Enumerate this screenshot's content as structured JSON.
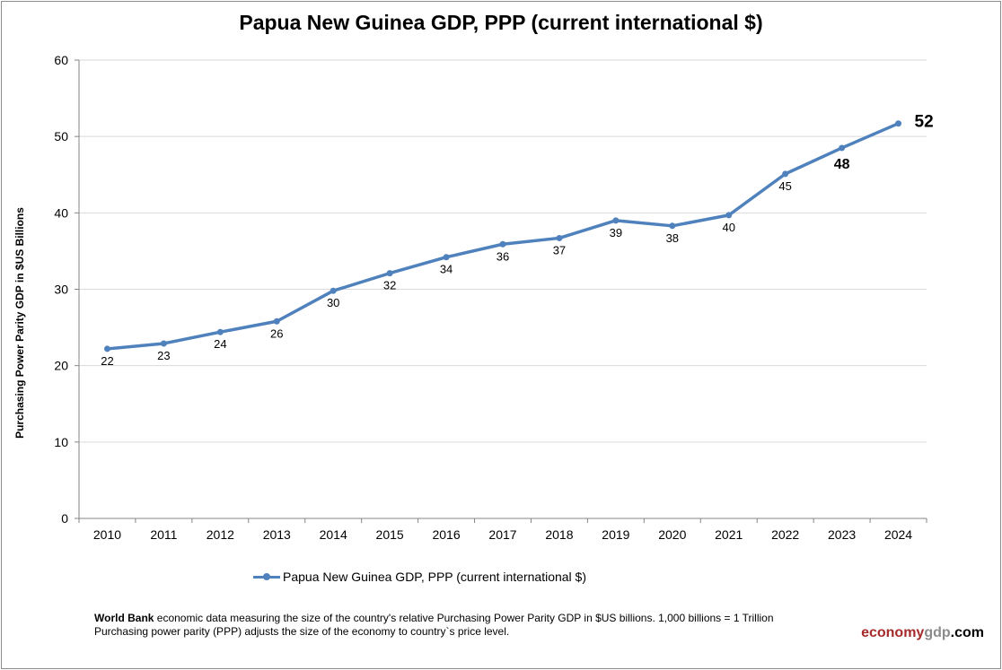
{
  "chart_data": {
    "type": "line",
    "title": "Papua New Guinea GDP, PPP (current international $)",
    "ylabel": "Purchasing Power Parity GDP in $US Billions",
    "xlabel": "",
    "categories": [
      "2010",
      "2011",
      "2012",
      "2013",
      "2014",
      "2015",
      "2016",
      "2017",
      "2018",
      "2019",
      "2020",
      "2021",
      "2022",
      "2023",
      "2024"
    ],
    "series": [
      {
        "name": "Papua New Guinea GDP, PPP (current international $)",
        "values": [
          22.2,
          22.9,
          24.4,
          25.8,
          29.8,
          32.1,
          34.2,
          35.9,
          36.7,
          39.0,
          38.3,
          39.7,
          45.1,
          48.5,
          51.7
        ],
        "labels": [
          "22",
          "23",
          "24",
          "26",
          "30",
          "32",
          "34",
          "36",
          "37",
          "39",
          "38",
          "40",
          "45",
          "48",
          "52"
        ],
        "color": "#4f81bd"
      }
    ],
    "ylim": [
      0,
      60
    ],
    "yticks": [
      "0",
      "10",
      "20",
      "30",
      "40",
      "50",
      "60"
    ],
    "grid": true,
    "legend": "bottom"
  },
  "footer": {
    "source_bold": "World Bank",
    "line1": " economic data  measuring the size of the country's relative  Purchasing Power Parity GDP in $US billions. 1,000 billions = 1 Trillion",
    "line2": "Purchasing power parity (PPP) adjusts the size of the economy to country`s price level."
  },
  "brand": {
    "part1": "economy",
    "part2": "gdp",
    "part3": ".com",
    "color1": "#a52a2a",
    "color2": "#8c8c8c",
    "color3": "#000000"
  }
}
